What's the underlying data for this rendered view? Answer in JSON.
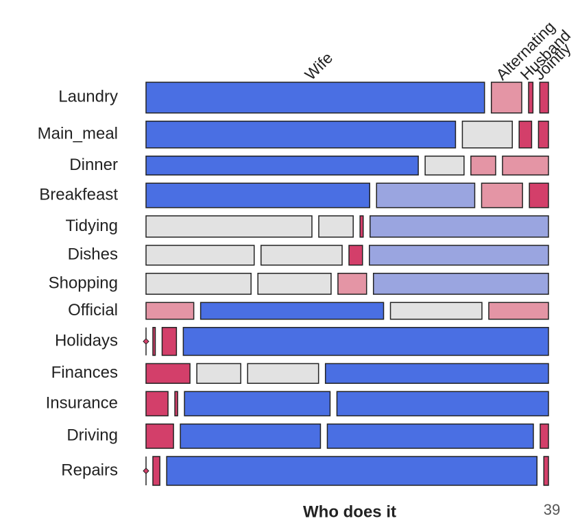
{
  "chart_data": {
    "type": "mosaic",
    "x_label": "Who does it",
    "page_number": "39",
    "categories": [
      "Laundry",
      "Main_meal",
      "Dinner",
      "Breakfeast",
      "Tidying",
      "Dishes",
      "Shopping",
      "Official",
      "Holidays",
      "Finances",
      "Insurance",
      "Driving",
      "Repairs"
    ],
    "series": [
      {
        "name": "Wife",
        "values": [
          156,
          124,
          77,
          82,
          53,
          32,
          33,
          12,
          0,
          13,
          8,
          10,
          0
        ],
        "colors": [
          "#4a6fe3",
          "#4a6fe3",
          "#4a6fe3",
          "#4a6fe3",
          "#e2e2e2",
          "#e2e2e2",
          "#e2e2e2",
          "#e495a5",
          "#d33f6a",
          "#d33f6a",
          "#d33f6a",
          "#d33f6a",
          "#d33f6a"
        ]
      },
      {
        "name": "Alternating",
        "values": [
          14,
          20,
          11,
          36,
          11,
          24,
          23,
          46,
          1,
          13,
          1,
          51,
          3
        ],
        "colors": [
          "#e495a5",
          "#e2e2e2",
          "#e2e2e2",
          "#9aa5e0",
          "#e2e2e2",
          "#e2e2e2",
          "#e2e2e2",
          "#4a6fe3",
          "#d33f6a",
          "#e2e2e2",
          "#d33f6a",
          "#4a6fe3",
          "#d33f6a"
        ]
      },
      {
        "name": "Husband",
        "values": [
          2,
          5,
          7,
          15,
          1,
          4,
          9,
          23,
          6,
          21,
          53,
          75,
          160
        ],
        "colors": [
          "#d33f6a",
          "#d33f6a",
          "#e495a5",
          "#e495a5",
          "#d33f6a",
          "#d33f6a",
          "#e495a5",
          "#e2e2e2",
          "#d33f6a",
          "#e2e2e2",
          "#4a6fe3",
          "#4a6fe3",
          "#4a6fe3"
        ]
      },
      {
        "name": "Jointly",
        "values": [
          4,
          4,
          13,
          7,
          57,
          53,
          55,
          15,
          153,
          66,
          77,
          3,
          2
        ],
        "colors": [
          "#d33f6a",
          "#d33f6a",
          "#e495a5",
          "#d33f6a",
          "#9aa5e0",
          "#9aa5e0",
          "#9aa5e0",
          "#e495a5",
          "#4a6fe3",
          "#4a6fe3",
          "#4a6fe3",
          "#d33f6a",
          "#d33f6a"
        ]
      }
    ]
  }
}
